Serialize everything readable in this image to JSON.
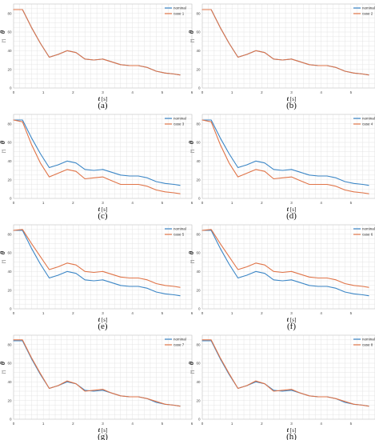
{
  "chart_data": [
    {
      "type": "line",
      "caption": "(a)",
      "xlabel_symbol": "t",
      "xlabel_unit": "[s]",
      "ylabel_symbol": "θ",
      "ylabel_unit": "[°]",
      "xlim": [
        0,
        6
      ],
      "ylim": [
        0,
        90
      ],
      "xticks": [
        0,
        1,
        2,
        3,
        4,
        5,
        6
      ],
      "yticks": [
        0,
        20,
        40,
        60,
        80
      ],
      "grid": true,
      "legend_position": "top-right",
      "series": [
        {
          "name": "nominal",
          "color": "#3b86c6",
          "t": [
            0,
            0.3,
            0.6,
            0.9,
            1.2,
            1.5,
            1.8,
            2.1,
            2.4,
            2.7,
            3.0,
            3.3,
            3.6,
            3.9,
            4.2,
            4.5,
            4.8,
            5.1,
            5.4,
            5.6
          ],
          "theta": [
            84,
            84,
            65,
            48,
            33,
            36,
            40,
            38,
            31,
            30,
            31,
            28,
            25,
            24,
            24,
            22,
            18,
            16,
            15,
            14
          ]
        },
        {
          "name": "case 1",
          "color": "#e07448",
          "t": [
            0,
            0.3,
            0.6,
            0.9,
            1.2,
            1.5,
            1.8,
            2.1,
            2.4,
            2.7,
            3.0,
            3.3,
            3.6,
            3.9,
            4.2,
            4.5,
            4.8,
            5.1,
            5.4,
            5.6
          ],
          "theta": [
            84,
            84,
            65,
            48,
            33,
            36,
            40,
            38,
            31,
            30,
            31,
            28,
            25,
            24,
            24,
            22,
            18,
            16,
            15,
            14
          ]
        }
      ]
    },
    {
      "type": "line",
      "caption": "(b)",
      "xlabel_symbol": "t",
      "xlabel_unit": "[s]",
      "ylabel_symbol": "θ",
      "ylabel_unit": "[°]",
      "xlim": [
        0,
        6
      ],
      "ylim": [
        0,
        90
      ],
      "xticks": [
        0,
        1,
        2,
        3,
        4,
        5,
        6
      ],
      "yticks": [
        0,
        20,
        40,
        60,
        80
      ],
      "grid": true,
      "legend_position": "top-right",
      "series": [
        {
          "name": "nominal",
          "color": "#3b86c6",
          "t": [
            0,
            0.3,
            0.6,
            0.9,
            1.2,
            1.5,
            1.8,
            2.1,
            2.4,
            2.7,
            3.0,
            3.3,
            3.6,
            3.9,
            4.2,
            4.5,
            4.8,
            5.1,
            5.4,
            5.6
          ],
          "theta": [
            84,
            84,
            65,
            48,
            33,
            36,
            40,
            38,
            31,
            30,
            31,
            28,
            25,
            24,
            24,
            22,
            18,
            16,
            15,
            14
          ]
        },
        {
          "name": "case 2",
          "color": "#e07448",
          "t": [
            0,
            0.3,
            0.6,
            0.9,
            1.2,
            1.5,
            1.8,
            2.1,
            2.4,
            2.7,
            3.0,
            3.3,
            3.6,
            3.9,
            4.2,
            4.5,
            4.8,
            5.1,
            5.4,
            5.6
          ],
          "theta": [
            84,
            84,
            65,
            48,
            33,
            36,
            40,
            38,
            31,
            30,
            31,
            28,
            25,
            24,
            24,
            22,
            18,
            16,
            15,
            14
          ]
        }
      ]
    },
    {
      "type": "line",
      "caption": "(c)",
      "xlabel_symbol": "t",
      "xlabel_unit": "[s]",
      "ylabel_symbol": "θ",
      "ylabel_unit": "[°]",
      "xlim": [
        0,
        6
      ],
      "ylim": [
        0,
        90
      ],
      "xticks": [
        0,
        1,
        2,
        3,
        4,
        5,
        6
      ],
      "yticks": [
        0,
        20,
        40,
        60,
        80
      ],
      "grid": true,
      "legend_position": "top-right",
      "series": [
        {
          "name": "nominal",
          "color": "#3b86c6",
          "t": [
            0,
            0.3,
            0.6,
            0.9,
            1.2,
            1.5,
            1.8,
            2.1,
            2.4,
            2.7,
            3.0,
            3.3,
            3.6,
            3.9,
            4.2,
            4.5,
            4.8,
            5.1,
            5.4,
            5.6
          ],
          "theta": [
            84,
            84,
            65,
            48,
            33,
            36,
            40,
            38,
            31,
            30,
            31,
            28,
            25,
            24,
            24,
            22,
            18,
            16,
            15,
            14
          ]
        },
        {
          "name": "case 3",
          "color": "#e07448",
          "t": [
            0,
            0.3,
            0.6,
            0.9,
            1.2,
            1.5,
            1.8,
            2.1,
            2.4,
            2.7,
            3.0,
            3.3,
            3.6,
            3.9,
            4.2,
            4.5,
            4.8,
            5.1,
            5.4,
            5.6
          ],
          "theta": [
            84,
            82,
            58,
            38,
            23,
            27,
            31,
            29,
            21,
            22,
            23,
            19,
            15,
            15,
            15,
            13,
            9,
            7,
            6,
            5
          ]
        }
      ]
    },
    {
      "type": "line",
      "caption": "(d)",
      "xlabel_symbol": "t",
      "xlabel_unit": "[s]",
      "ylabel_symbol": "θ",
      "ylabel_unit": "[°]",
      "xlim": [
        0,
        6
      ],
      "ylim": [
        0,
        90
      ],
      "xticks": [
        0,
        1,
        2,
        3,
        4,
        5,
        6
      ],
      "yticks": [
        0,
        20,
        40,
        60,
        80
      ],
      "grid": true,
      "legend_position": "top-right",
      "series": [
        {
          "name": "nominal",
          "color": "#3b86c6",
          "t": [
            0,
            0.3,
            0.6,
            0.9,
            1.2,
            1.5,
            1.8,
            2.1,
            2.4,
            2.7,
            3.0,
            3.3,
            3.6,
            3.9,
            4.2,
            4.5,
            4.8,
            5.1,
            5.4,
            5.6
          ],
          "theta": [
            84,
            84,
            65,
            48,
            33,
            36,
            40,
            38,
            31,
            30,
            31,
            28,
            25,
            24,
            24,
            22,
            18,
            16,
            15,
            14
          ]
        },
        {
          "name": "case 4",
          "color": "#e07448",
          "t": [
            0,
            0.3,
            0.6,
            0.9,
            1.2,
            1.5,
            1.8,
            2.1,
            2.4,
            2.7,
            3.0,
            3.3,
            3.6,
            3.9,
            4.2,
            4.5,
            4.8,
            5.1,
            5.4,
            5.6
          ],
          "theta": [
            84,
            82,
            58,
            38,
            23,
            27,
            31,
            29,
            21,
            22,
            23,
            19,
            15,
            15,
            15,
            13,
            9,
            7,
            6,
            5
          ]
        }
      ]
    },
    {
      "type": "line",
      "caption": "(e)",
      "xlabel_symbol": "t",
      "xlabel_unit": "[s]",
      "ylabel_symbol": "θ",
      "ylabel_unit": "[°]",
      "xlim": [
        0,
        6
      ],
      "ylim": [
        0,
        90
      ],
      "xticks": [
        0,
        1,
        2,
        3,
        4,
        5,
        6
      ],
      "yticks": [
        0,
        20,
        40,
        60,
        80
      ],
      "grid": true,
      "legend_position": "top-right",
      "series": [
        {
          "name": "nominal",
          "color": "#3b86c6",
          "t": [
            0,
            0.3,
            0.6,
            0.9,
            1.2,
            1.5,
            1.8,
            2.1,
            2.4,
            2.7,
            3.0,
            3.3,
            3.6,
            3.9,
            4.2,
            4.5,
            4.8,
            5.1,
            5.4,
            5.6
          ],
          "theta": [
            84,
            84,
            65,
            48,
            33,
            36,
            40,
            38,
            31,
            30,
            31,
            28,
            25,
            24,
            24,
            22,
            18,
            16,
            15,
            14
          ]
        },
        {
          "name": "case 5",
          "color": "#e07448",
          "t": [
            0,
            0.3,
            0.6,
            0.9,
            1.2,
            1.5,
            1.8,
            2.1,
            2.4,
            2.7,
            3.0,
            3.3,
            3.6,
            3.9,
            4.2,
            4.5,
            4.8,
            5.1,
            5.4,
            5.6
          ],
          "theta": [
            84,
            85,
            70,
            56,
            42,
            45,
            49,
            47,
            40,
            39,
            40,
            37,
            34,
            33,
            33,
            31,
            27,
            25,
            24,
            23
          ]
        }
      ]
    },
    {
      "type": "line",
      "caption": "(f)",
      "xlabel_symbol": "t",
      "xlabel_unit": "[s]",
      "ylabel_symbol": "θ",
      "ylabel_unit": "[°]",
      "xlim": [
        0,
        6
      ],
      "ylim": [
        0,
        90
      ],
      "xticks": [
        0,
        1,
        2,
        3,
        4,
        5,
        6
      ],
      "yticks": [
        0,
        20,
        40,
        60,
        80
      ],
      "grid": true,
      "legend_position": "top-right",
      "series": [
        {
          "name": "nominal",
          "color": "#3b86c6",
          "t": [
            0,
            0.3,
            0.6,
            0.9,
            1.2,
            1.5,
            1.8,
            2.1,
            2.4,
            2.7,
            3.0,
            3.3,
            3.6,
            3.9,
            4.2,
            4.5,
            4.8,
            5.1,
            5.4,
            5.6
          ],
          "theta": [
            84,
            84,
            65,
            48,
            33,
            36,
            40,
            38,
            31,
            30,
            31,
            28,
            25,
            24,
            24,
            22,
            18,
            16,
            15,
            14
          ]
        },
        {
          "name": "case 6",
          "color": "#e07448",
          "t": [
            0,
            0.3,
            0.6,
            0.9,
            1.2,
            1.5,
            1.8,
            2.1,
            2.4,
            2.7,
            3.0,
            3.3,
            3.6,
            3.9,
            4.2,
            4.5,
            4.8,
            5.1,
            5.4,
            5.6
          ],
          "theta": [
            84,
            85,
            70,
            56,
            42,
            45,
            49,
            47,
            40,
            39,
            40,
            37,
            34,
            33,
            33,
            31,
            27,
            25,
            24,
            23
          ]
        }
      ]
    },
    {
      "type": "line",
      "caption": "(g)",
      "xlabel_symbol": "t",
      "xlabel_unit": "[s]",
      "ylabel_symbol": "θ",
      "ylabel_unit": "[°]",
      "xlim": [
        0,
        6
      ],
      "ylim": [
        0,
        90
      ],
      "xticks": [
        0,
        1,
        2,
        3,
        4,
        5,
        6
      ],
      "yticks": [
        0,
        20,
        40,
        60,
        80
      ],
      "grid": true,
      "legend_position": "top-right",
      "series": [
        {
          "name": "nominal",
          "color": "#3b86c6",
          "t": [
            0,
            0.3,
            0.6,
            0.9,
            1.2,
            1.5,
            1.8,
            2.1,
            2.4,
            2.7,
            3.0,
            3.3,
            3.6,
            3.9,
            4.2,
            4.5,
            4.8,
            5.1,
            5.4,
            5.6
          ],
          "theta": [
            84,
            84,
            65,
            48,
            33,
            36,
            40,
            38,
            31,
            30,
            31,
            28,
            25,
            24,
            24,
            22,
            18,
            16,
            15,
            14
          ]
        },
        {
          "name": "case 7",
          "color": "#e07448",
          "t": [
            0,
            0.3,
            0.6,
            0.9,
            1.2,
            1.5,
            1.8,
            2.1,
            2.4,
            2.7,
            3.0,
            3.3,
            3.6,
            3.9,
            4.2,
            4.5,
            4.8,
            5.1,
            5.4,
            5.6
          ],
          "theta": [
            85,
            85,
            66,
            49,
            33,
            36,
            41,
            38,
            30,
            31,
            32,
            28,
            25,
            24,
            24,
            22,
            19,
            16,
            15,
            14
          ]
        }
      ]
    },
    {
      "type": "line",
      "caption": "(h)",
      "xlabel_symbol": "t",
      "xlabel_unit": "[s]",
      "ylabel_symbol": "θ",
      "ylabel_unit": "[°]",
      "xlim": [
        0,
        6
      ],
      "ylim": [
        0,
        90
      ],
      "xticks": [
        0,
        1,
        2,
        3,
        4,
        5,
        6
      ],
      "yticks": [
        0,
        20,
        40,
        60,
        80
      ],
      "grid": true,
      "legend_position": "top-right",
      "series": [
        {
          "name": "nominal",
          "color": "#3b86c6",
          "t": [
            0,
            0.3,
            0.6,
            0.9,
            1.2,
            1.5,
            1.8,
            2.1,
            2.4,
            2.7,
            3.0,
            3.3,
            3.6,
            3.9,
            4.2,
            4.5,
            4.8,
            5.1,
            5.4,
            5.6
          ],
          "theta": [
            84,
            84,
            65,
            48,
            33,
            36,
            40,
            38,
            31,
            30,
            31,
            28,
            25,
            24,
            24,
            22,
            18,
            16,
            15,
            14
          ]
        },
        {
          "name": "case 8",
          "color": "#e07448",
          "t": [
            0,
            0.3,
            0.6,
            0.9,
            1.2,
            1.5,
            1.8,
            2.1,
            2.4,
            2.7,
            3.0,
            3.3,
            3.6,
            3.9,
            4.2,
            4.5,
            4.8,
            5.1,
            5.4,
            5.6
          ],
          "theta": [
            85,
            85,
            66,
            49,
            33,
            36,
            41,
            38,
            30,
            31,
            32,
            28,
            25,
            24,
            24,
            22,
            19,
            16,
            15,
            14
          ]
        }
      ]
    }
  ]
}
